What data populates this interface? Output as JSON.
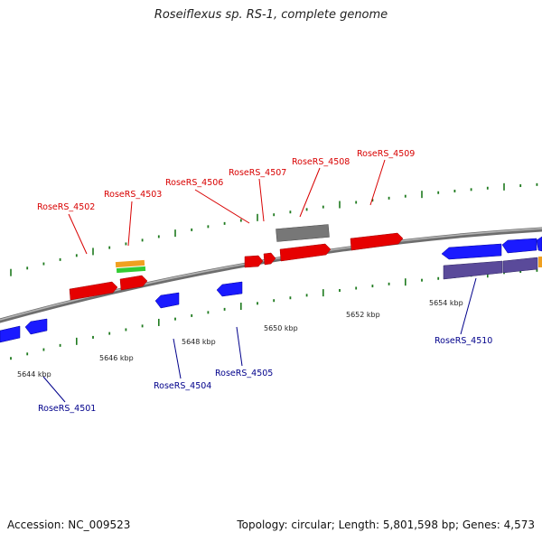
{
  "title": "Roseiflexus sp. RS-1, complete genome",
  "footer": {
    "accession": "Accession: NC_009523",
    "summary": "Topology: circular; Length: 5,801,598 bp; Genes: 4,573"
  },
  "colors": {
    "cds_forward": "#e60000",
    "cds_reverse": "#1a1aff",
    "pseudo": "#777777",
    "rna_orange": "#f0a020",
    "rna_green": "#33cc33",
    "operon_purple": "#5a4a9a",
    "label_forward": "#d80000",
    "label_reverse": "#00008b",
    "tick": "#1e7a1e",
    "backbone": "#8a8a8a"
  },
  "scale": {
    "ticks": [
      {
        "label": "5644 kbp"
      },
      {
        "label": "5646 kbp"
      },
      {
        "label": "5648 kbp"
      },
      {
        "label": "5650 kbp"
      },
      {
        "label": "5652 kbp"
      },
      {
        "label": "5654 kbp"
      }
    ]
  },
  "genes_forward": [
    {
      "label": "RoseRS_4502"
    },
    {
      "label": "RoseRS_4503"
    },
    {
      "label": "RoseRS_4506"
    },
    {
      "label": "RoseRS_4507"
    },
    {
      "label": "RoseRS_4508"
    },
    {
      "label": "RoseRS_4509"
    }
  ],
  "genes_reverse": [
    {
      "label": "RoseRS_4501"
    },
    {
      "label": "RoseRS_4504"
    },
    {
      "label": "RoseRS_4505"
    },
    {
      "label": "RoseRS_4510"
    }
  ]
}
